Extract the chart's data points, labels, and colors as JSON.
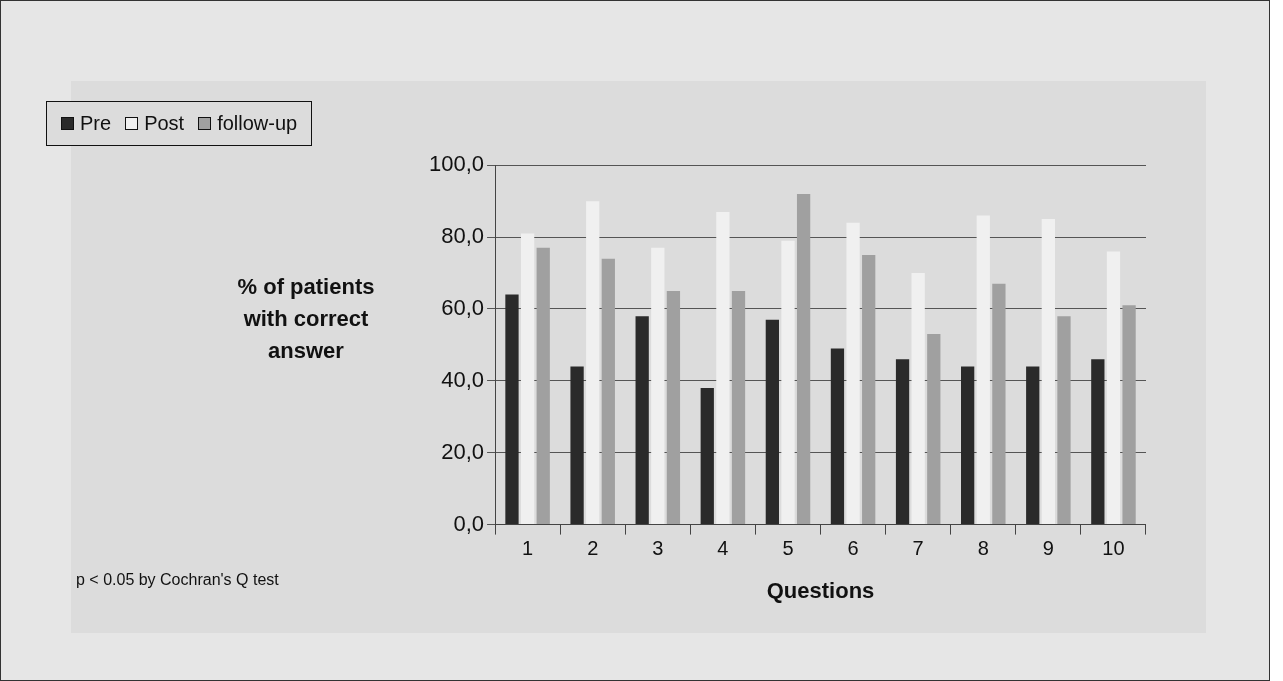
{
  "chart_data": {
    "type": "bar",
    "xlabel": "Questions",
    "ylabel": "% of patients with correct answer",
    "categories": [
      "1",
      "2",
      "3",
      "4",
      "5",
      "6",
      "7",
      "8",
      "9",
      "10"
    ],
    "series": [
      {
        "name": "Pre",
        "color": "#2a2a2a",
        "values": [
          64,
          44,
          58,
          38,
          57,
          49,
          46,
          44,
          44,
          46
        ]
      },
      {
        "name": "Post",
        "color": "#f0f0f0",
        "values": [
          81,
          90,
          77,
          87,
          79,
          84,
          70,
          86,
          85,
          76
        ]
      },
      {
        "name": "follow-up",
        "color": "#a0a0a0",
        "values": [
          77,
          74,
          65,
          65,
          92,
          75,
          53,
          67,
          58,
          61
        ]
      }
    ],
    "ylim": [
      0,
      100
    ],
    "yticks": [
      {
        "value": 0,
        "label": "0,0"
      },
      {
        "value": 20,
        "label": "20,0"
      },
      {
        "value": 40,
        "label": "40,0"
      },
      {
        "value": 60,
        "label": "60,0"
      },
      {
        "value": 80,
        "label": "80,0"
      },
      {
        "value": 100,
        "label": "100,0"
      }
    ],
    "grid": "y",
    "legend": "top left",
    "annotations": [
      "p < 0.05 by Cochran's Q test"
    ]
  }
}
